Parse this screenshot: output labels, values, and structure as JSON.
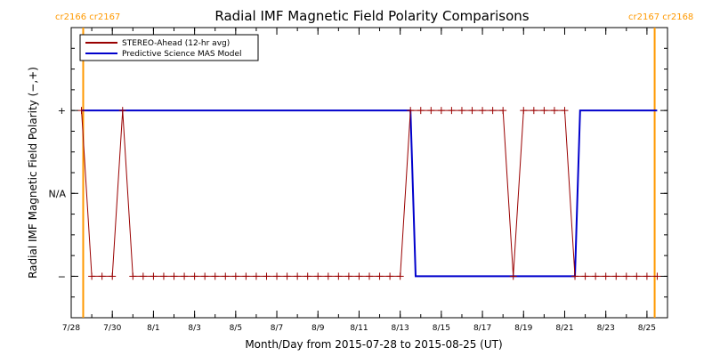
{
  "chart_data": {
    "type": "line",
    "title": "Radial IMF Magnetic Field Polarity Comparisons",
    "xlabel": "Month/Day from 2015-07-28 to 2015-08-25 (UT)",
    "ylabel": "Radial IMF Magnetic Field Polarity (−,+)",
    "xlim": [
      "2015-07-28",
      "2015-08-26"
    ],
    "x_ticks": [
      "7/28",
      "7/30",
      "8/1",
      "8/3",
      "8/5",
      "8/7",
      "8/9",
      "8/11",
      "8/13",
      "8/15",
      "8/17",
      "8/19",
      "8/21",
      "8/23",
      "8/25"
    ],
    "x_tick_dates": [
      "2015-07-28",
      "2015-07-30",
      "2015-08-01",
      "2015-08-03",
      "2015-08-05",
      "2015-08-07",
      "2015-08-09",
      "2015-08-11",
      "2015-08-13",
      "2015-08-15",
      "2015-08-17",
      "2015-08-19",
      "2015-08-21",
      "2015-08-23",
      "2015-08-25"
    ],
    "y_ticks": [
      "+",
      "N/A",
      "−"
    ],
    "y_tick_values": [
      1,
      0,
      -1
    ],
    "ylim": [
      -1.5,
      2.0
    ],
    "legend_position": "top-left",
    "series": [
      {
        "name": "STEREO-Ahead (12-hr avg)",
        "color": "#990000",
        "x": [
          "2015-07-28T12:00",
          "2015-07-29T00:00",
          "2015-07-29T12:00",
          "2015-07-30T00:00",
          "2015-07-30T12:00",
          "2015-07-31T00:00",
          "2015-07-31T12:00",
          "2015-08-01T00:00",
          "2015-08-01T12:00",
          "2015-08-02T00:00",
          "2015-08-02T12:00",
          "2015-08-03T00:00",
          "2015-08-03T12:00",
          "2015-08-04T00:00",
          "2015-08-04T12:00",
          "2015-08-05T00:00",
          "2015-08-05T12:00",
          "2015-08-06T00:00",
          "2015-08-06T12:00",
          "2015-08-07T00:00",
          "2015-08-07T12:00",
          "2015-08-08T00:00",
          "2015-08-08T12:00",
          "2015-08-09T00:00",
          "2015-08-09T12:00",
          "2015-08-10T00:00",
          "2015-08-10T12:00",
          "2015-08-11T00:00",
          "2015-08-11T12:00",
          "2015-08-12T00:00",
          "2015-08-12T12:00",
          "2015-08-13T00:00",
          "2015-08-13T12:00",
          "2015-08-14T00:00",
          "2015-08-14T12:00",
          "2015-08-15T00:00",
          "2015-08-15T12:00",
          "2015-08-16T00:00",
          "2015-08-16T12:00",
          "2015-08-17T00:00",
          "2015-08-17T12:00",
          "2015-08-18T00:00",
          "2015-08-18T12:00",
          "2015-08-19T00:00",
          "2015-08-19T12:00",
          "2015-08-20T00:00",
          "2015-08-20T12:00",
          "2015-08-21T00:00",
          "2015-08-21T12:00",
          "2015-08-22T00:00",
          "2015-08-22T12:00",
          "2015-08-23T00:00",
          "2015-08-23T12:00",
          "2015-08-24T00:00",
          "2015-08-24T12:00",
          "2015-08-25T00:00",
          "2015-08-25T12:00"
        ],
        "values": [
          1,
          -1,
          -1,
          -1,
          1,
          -1,
          -1,
          -1,
          -1,
          -1,
          -1,
          -1,
          -1,
          -1,
          -1,
          -1,
          -1,
          -1,
          -1,
          -1,
          -1,
          -1,
          -1,
          -1,
          -1,
          -1,
          -1,
          -1,
          -1,
          -1,
          -1,
          -1,
          1,
          1,
          1,
          1,
          1,
          1,
          1,
          1,
          1,
          1,
          -1,
          1,
          1,
          1,
          1,
          1,
          -1,
          -1,
          -1,
          -1,
          -1,
          -1,
          -1,
          -1,
          -1
        ]
      },
      {
        "name": "Predictive Science MAS Model",
        "color": "#0000cc",
        "x": [
          "2015-07-28T12:00",
          "2015-08-13T12:00",
          "2015-08-13T18:00",
          "2015-08-21T12:00",
          "2015-08-21T18:00",
          "2015-08-25T12:00"
        ],
        "values": [
          1,
          1,
          -1,
          -1,
          1,
          1
        ]
      }
    ],
    "vertical_markers": [
      {
        "x": "2015-07-28T14:00",
        "label": "cr2166 cr2167",
        "color": "#ff9900"
      },
      {
        "x": "2015-08-25T09:00",
        "label": "cr2167 cr2168",
        "color": "#ff9900"
      }
    ]
  }
}
